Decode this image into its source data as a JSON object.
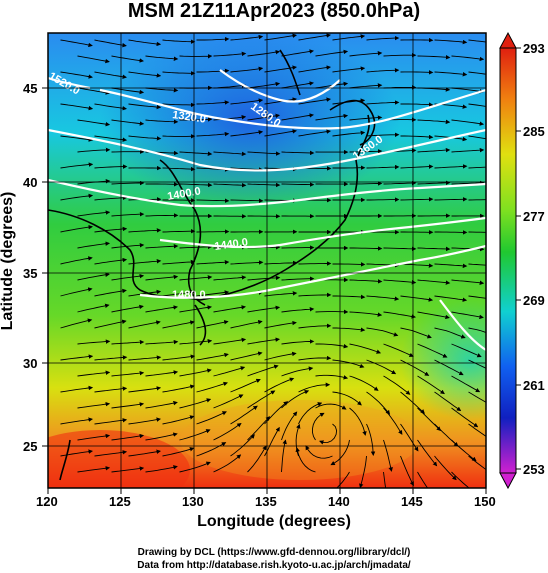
{
  "title": "MSM 21Z11Apr2023 (850.0hPa)",
  "xlabel": "Longitude (degrees)",
  "ylabel": "Latitude  (degrees)",
  "x_ticks": [
    "120",
    "125",
    "130",
    "135",
    "140",
    "145",
    "150"
  ],
  "y_ticks": [
    "25",
    "30",
    "35",
    "40",
    "45"
  ],
  "colorbar_ticks": [
    "293",
    "285",
    "277",
    "269",
    "261",
    "253"
  ],
  "contour_labels": [
    "1280.0",
    "1320.0",
    "1360.0",
    "1400.0",
    "1440.0",
    "1480.0",
    "1520.0"
  ],
  "footer_line1": "Drawing by DCL (https://www.gfd-dennou.org/library/dcl/)",
  "footer_line2": "Data from http://database.rish.kyoto-u.ac.jp/arch/jmadata/",
  "chart_data": {
    "type": "heatmap",
    "title": "MSM 21Z11Apr2023 (850.0hPa)",
    "xlabel": "Longitude (degrees)",
    "ylabel": "Latitude  (degrees)",
    "xlim": [
      120,
      150
    ],
    "ylim": [
      22.4,
      47.6
    ],
    "colorbar_range": [
      253,
      293
    ],
    "colorbar_ticks": [
      293,
      285,
      277,
      269,
      261,
      253
    ],
    "contour_levels": [
      1280,
      1320,
      1360,
      1400,
      1440,
      1480,
      1520
    ],
    "colors": {
      "cold": "#3a7fe8",
      "cool": "#10c8d8",
      "mid": "#2cc840",
      "warm": "#c8e010",
      "hot": "#f04010",
      "contour": "#ffffff"
    }
  }
}
